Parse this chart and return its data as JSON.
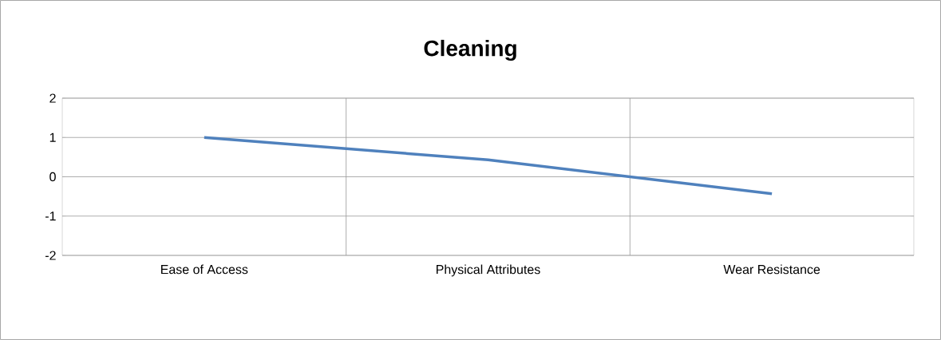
{
  "chart_data": {
    "type": "line",
    "title": "Cleaning",
    "categories": [
      "Ease of Access",
      "Physical Attributes",
      "Wear Resistance"
    ],
    "values": [
      1,
      0.43,
      -0.43
    ],
    "color": "#4f81bd",
    "ylim": [
      -2,
      2
    ],
    "yticks": [
      -2,
      -1,
      0,
      1,
      2
    ],
    "grid": true
  }
}
